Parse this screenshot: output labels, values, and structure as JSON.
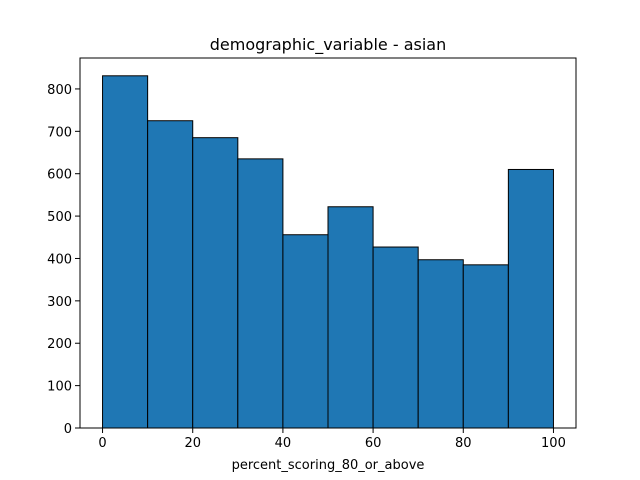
{
  "chart_data": {
    "type": "bar",
    "title": "demographic_variable - asian",
    "xlabel": "percent_scoring_80_or_above",
    "ylabel": "",
    "bins": [
      {
        "x0": 0,
        "x1": 10,
        "value": 831
      },
      {
        "x0": 10,
        "x1": 20,
        "value": 725
      },
      {
        "x0": 20,
        "x1": 30,
        "value": 685
      },
      {
        "x0": 30,
        "x1": 40,
        "value": 635
      },
      {
        "x0": 40,
        "x1": 50,
        "value": 456
      },
      {
        "x0": 50,
        "x1": 60,
        "value": 522
      },
      {
        "x0": 60,
        "x1": 70,
        "value": 427
      },
      {
        "x0": 70,
        "x1": 80,
        "value": 397
      },
      {
        "x0": 80,
        "x1": 90,
        "value": 385
      },
      {
        "x0": 90,
        "x1": 100,
        "value": 610
      }
    ],
    "xlim": [
      -5,
      105
    ],
    "ylim": [
      0,
      873
    ],
    "xticks": [
      0,
      20,
      40,
      60,
      80,
      100
    ],
    "xtick_labels": [
      "0",
      "20",
      "40",
      "60",
      "80",
      "100"
    ],
    "yticks": [
      0,
      100,
      200,
      300,
      400,
      500,
      600,
      700,
      800
    ],
    "ytick_labels": [
      "0",
      "100",
      "200",
      "300",
      "400",
      "500",
      "600",
      "700",
      "800"
    ],
    "grid": false,
    "colors": {
      "bar_fill": "#1f77b4",
      "bar_edge": "#000000",
      "axes": "#000000",
      "background": "#ffffff"
    }
  }
}
